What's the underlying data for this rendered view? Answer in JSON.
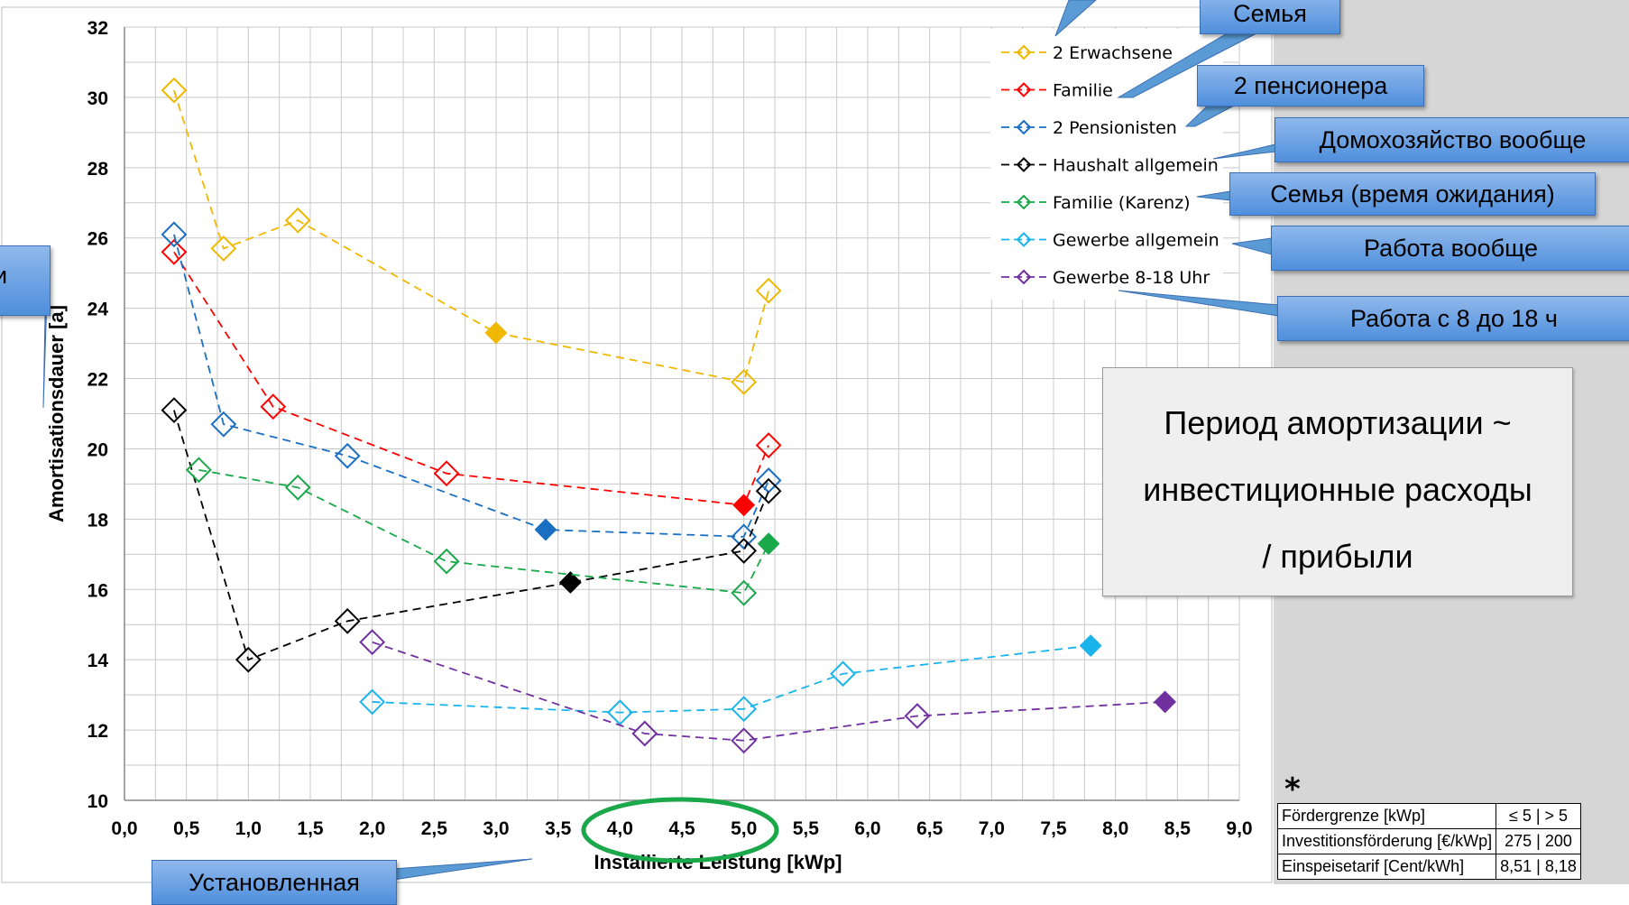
{
  "chart_data": {
    "type": "line",
    "title": "",
    "xlabel": "Installierte Leistung [kWp]",
    "ylabel": "Amortisationsdauer [a]",
    "xlim": [
      0,
      9
    ],
    "ylim": [
      10,
      32
    ],
    "xticks": [
      "0,0",
      "0,5",
      "1,0",
      "1,5",
      "2,0",
      "2,5",
      "3,0",
      "3,5",
      "4,0",
      "4,5",
      "5,0",
      "5,5",
      "6,0",
      "6,5",
      "7,0",
      "7,5",
      "8,0",
      "8,5",
      "9,0"
    ],
    "yticks": [
      "10",
      "12",
      "14",
      "16",
      "18",
      "20",
      "22",
      "24",
      "26",
      "28",
      "30",
      "32"
    ],
    "grid": true,
    "legend_position": "top-right",
    "series": [
      {
        "name": "2 Erwachsene",
        "color": "#f0b800",
        "x": [
          0.4,
          0.8,
          1.4,
          3.0,
          5.0,
          5.2
        ],
        "y": [
          30.2,
          25.7,
          26.5,
          23.3,
          21.9,
          24.5
        ],
        "filled_index": 3
      },
      {
        "name": "Familie",
        "color": "#ff0000",
        "x": [
          0.4,
          1.2,
          2.6,
          5.0,
          5.2
        ],
        "y": [
          25.6,
          21.2,
          19.3,
          18.4,
          20.1
        ],
        "filled_index": 3
      },
      {
        "name": "2 Pensionisten",
        "color": "#1a6fc2",
        "x": [
          0.4,
          0.8,
          1.8,
          3.4,
          5.0,
          5.2
        ],
        "y": [
          26.1,
          20.7,
          19.8,
          17.7,
          17.5,
          19.1
        ],
        "filled_index": 3
      },
      {
        "name": "Haushalt allgemein",
        "color": "#000000",
        "x": [
          0.4,
          1.0,
          1.8,
          3.6,
          5.0,
          5.2
        ],
        "y": [
          21.1,
          14.0,
          15.1,
          16.2,
          17.1,
          18.8
        ],
        "filled_index": 3
      },
      {
        "name": "Familie (Karenz)",
        "color": "#19a84a",
        "x": [
          0.6,
          1.4,
          2.6,
          5.0,
          5.2
        ],
        "y": [
          19.4,
          18.9,
          16.8,
          15.9,
          17.3
        ],
        "filled_index": 4
      },
      {
        "name": "Gewerbe allgemein",
        "color": "#19b4ec",
        "x": [
          2.0,
          4.0,
          5.0,
          5.8,
          7.8
        ],
        "y": [
          12.8,
          12.5,
          12.6,
          13.6,
          14.4
        ],
        "filled_index": 4
      },
      {
        "name": "Gewerbe 8-18 Uhr",
        "color": "#7030a0",
        "x": [
          2.0,
          4.2,
          5.0,
          6.4,
          8.4
        ],
        "y": [
          14.5,
          11.9,
          11.7,
          12.4,
          12.8
        ],
        "filled_index": 4
      }
    ]
  },
  "callouts": {
    "familie": "Семья",
    "pensionisten": "2 пенсионера",
    "haushalt": "Домохозяйство вообще",
    "karenz": "Семья (время ожидания)",
    "gewerbe": "Работа вообще",
    "gewerbe_8_18": "Работа с 8 до 18 ч",
    "ustanovlennaya": "Установленная",
    "left_letter": "и"
  },
  "note": {
    "line1": "Период амортизации ~",
    "line2": "инвестиционные расходы",
    "line3": "/ прибыли"
  },
  "asterisk": "*",
  "foerder_table": {
    "rows": [
      {
        "label": "Fördergrenze [kWp]",
        "value": "≤ 5 | > 5"
      },
      {
        "label": "Investitionsförderung [€/kWp]",
        "value": "275 | 200"
      },
      {
        "label": "Einspeisetarif [Cent/kWh]",
        "value": "8,51 | 8,18"
      }
    ]
  },
  "colors": {
    "highlight_ellipse": "#1aa84a",
    "callout": "#5b9bd5",
    "panel": "#d6d6d6"
  }
}
